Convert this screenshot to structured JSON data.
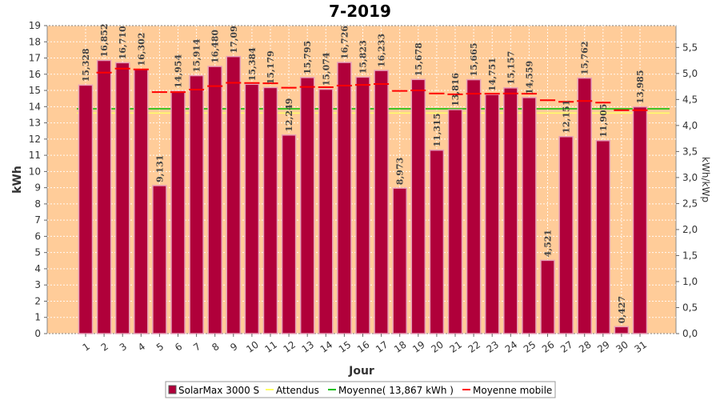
{
  "chart_data": {
    "type": "bar",
    "title": "7-2019",
    "xlabel": "Jour",
    "ylabel": "kWh",
    "ylabel_right": "kWh/kWp",
    "ylim": [
      0,
      19
    ],
    "ylim_right": [
      0,
      5.92
    ],
    "y_ticks": [
      "0",
      "1",
      "2",
      "3",
      "4",
      "5",
      "6",
      "7",
      "8",
      "9",
      "10",
      "11",
      "12",
      "13",
      "14",
      "15",
      "16",
      "17",
      "18",
      "19"
    ],
    "y_ticks_right": [
      "0,0",
      "0,5",
      "1,0",
      "1,5",
      "2,0",
      "2,5",
      "3,0",
      "3,5",
      "4,0",
      "4,5",
      "5,0",
      "5,5"
    ],
    "categories": [
      "1",
      "2",
      "3",
      "4",
      "5",
      "6",
      "7",
      "8",
      "9",
      "10",
      "11",
      "12",
      "13",
      "14",
      "15",
      "16",
      "17",
      "18",
      "19",
      "20",
      "21",
      "22",
      "23",
      "24",
      "25",
      "26",
      "27",
      "28",
      "29",
      "30",
      "31"
    ],
    "series": [
      {
        "name": "SolarMax 3000 S",
        "color": "#b0003a",
        "values": [
          15.328,
          16.852,
          16.71,
          16.302,
          9.131,
          14.954,
          15.914,
          16.48,
          17.09,
          15.384,
          15.179,
          12.249,
          15.795,
          15.074,
          16.726,
          15.823,
          16.233,
          8.973,
          15.678,
          11.315,
          13.816,
          15.665,
          14.751,
          15.157,
          14.559,
          4.521,
          12.151,
          15.762,
          11.905,
          0.427,
          13.985
        ],
        "labels": [
          "15,328",
          "16,852",
          "16,710",
          "16,302",
          "9,131",
          "14,954",
          "15,914",
          "16,480",
          "17,09",
          "15,384",
          "15,179",
          "12,249",
          "15,795",
          "15,074",
          "16,726",
          "15,823",
          "16,233",
          "8,973",
          "15,678",
          "11,315",
          "13,816",
          "15,665",
          "14,751",
          "15,157",
          "14,559",
          "4,521",
          "12,151",
          "15,762",
          "11,905",
          "0,427",
          "13,985"
        ]
      },
      {
        "name": "Attendus",
        "color": "#ffff66",
        "value": 13.6
      },
      {
        "name": "Moyenne( 13,867 kWh )",
        "color": "#00c000",
        "value": 13.867
      },
      {
        "name": "Moyenne mobile",
        "color": "#ff0000",
        "values": [
          null,
          16.1,
          16.35,
          16.3,
          14.9,
          14.9,
          15.05,
          15.27,
          15.47,
          15.46,
          15.44,
          15.17,
          15.22,
          15.2,
          15.3,
          15.34,
          15.4,
          14.97,
          15.0,
          14.81,
          14.76,
          14.8,
          14.8,
          14.81,
          14.8,
          14.4,
          14.3,
          14.35,
          14.25,
          13.78,
          13.78
        ]
      }
    ],
    "legend_position": "bottom",
    "grid": true,
    "plot_background": "#ffcc99"
  }
}
